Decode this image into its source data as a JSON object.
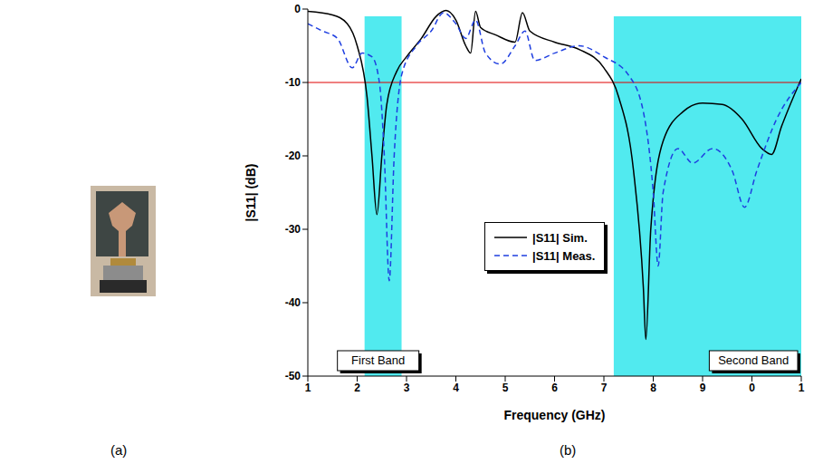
{
  "panel_labels": [
    "(a)",
    "(b)"
  ],
  "chart_data": {
    "type": "line",
    "xlabel": "Frequency (GHz)",
    "ylabel": "|S11| (dB)",
    "xlim": [
      1,
      11
    ],
    "xticks": [
      1,
      2,
      3,
      4,
      5,
      6,
      7,
      8,
      9,
      {
        "value": 10,
        "label": "0"
      },
      {
        "value": 11,
        "label": "1"
      }
    ],
    "ylim": [
      -50,
      0
    ],
    "yticks": [
      0,
      -10,
      -20,
      -30,
      -40,
      -50
    ],
    "grid": false,
    "legend": "center",
    "reference_line": -10,
    "bands": [
      {
        "label": "First Band",
        "x": [
          2.15,
          2.9
        ]
      },
      {
        "label": "Second Band",
        "x": [
          7.2,
          11
        ]
      }
    ],
    "series": [
      {
        "name": "|S11| Sim.",
        "color": "#000000",
        "line_style": "solid",
        "x": [
          1,
          1.5,
          1.8,
          2.0,
          2.2,
          2.3,
          2.4,
          2.5,
          2.6,
          2.8,
          3.0,
          3.3,
          3.6,
          3.8,
          4.0,
          4.2,
          4.3,
          4.4,
          4.5,
          4.8,
          5.2,
          5.35,
          5.5,
          6.0,
          6.5,
          7.0,
          7.3,
          7.6,
          7.8,
          7.85,
          7.95,
          8.2,
          8.6,
          9.0,
          9.4,
          9.8,
          10.2,
          10.4,
          10.6,
          11
        ],
        "values": [
          -0.3,
          -0.8,
          -2,
          -5,
          -12,
          -20,
          -28,
          -20,
          -13,
          -8.5,
          -6.5,
          -4,
          -1,
          -0.2,
          -1.5,
          -5,
          -6,
          -0.3,
          -2.5,
          -3.5,
          -4.5,
          -0.5,
          -3,
          -4.5,
          -5.5,
          -8,
          -12,
          -22,
          -38,
          -45,
          -30,
          -18,
          -14,
          -12.8,
          -13,
          -15,
          -19,
          -19.8,
          -16,
          -9.5
        ]
      },
      {
        "name": "|S11| Meas.",
        "color": "#1f3fe0",
        "line_style": "dashed",
        "x": [
          1,
          1.3,
          1.6,
          1.9,
          2.1,
          2.3,
          2.45,
          2.55,
          2.65,
          2.75,
          2.9,
          3.2,
          3.5,
          3.75,
          4.0,
          4.2,
          4.4,
          4.6,
          4.9,
          5.2,
          5.4,
          5.6,
          6.0,
          6.5,
          7.0,
          7.5,
          7.8,
          8.0,
          8.1,
          8.2,
          8.5,
          8.8,
          9.2,
          9.6,
          9.85,
          10.1,
          10.5,
          11
        ],
        "values": [
          -2,
          -3,
          -4,
          -8,
          -6,
          -6.5,
          -10,
          -20,
          -37,
          -20,
          -9,
          -5,
          -3,
          -0.5,
          -2,
          -4,
          -1.5,
          -6,
          -7.5,
          -5,
          -3,
          -7,
          -6,
          -5,
          -6.5,
          -9,
          -14,
          -25,
          -35,
          -25,
          -19,
          -21,
          -19,
          -22,
          -27,
          -22,
          -15,
          -10
        ]
      }
    ]
  }
}
